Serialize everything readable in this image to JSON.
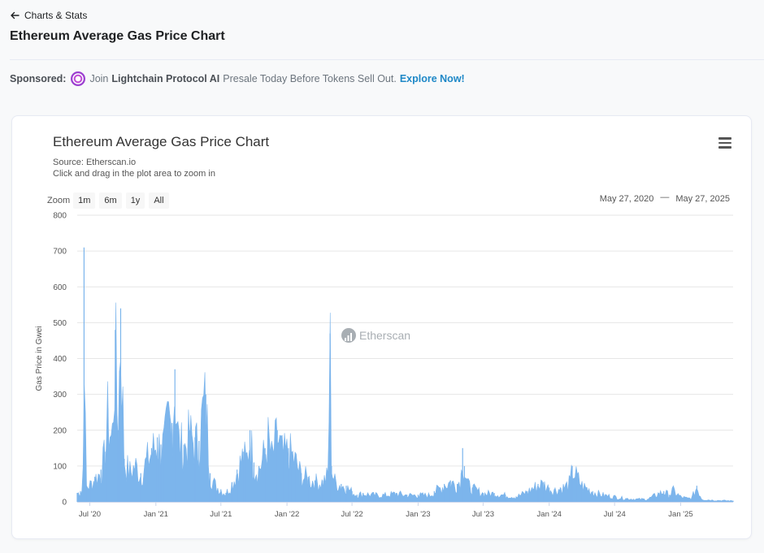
{
  "header": {
    "back_label": "Charts & Stats",
    "page_title": "Ethereum Average Gas Price Chart"
  },
  "sponsored": {
    "label": "Sponsored:",
    "text_before": "Join",
    "brand": "Lightchain Protocol AI",
    "text_after": "Presale Today Before Tokens Sell Out.",
    "cta": "Explore Now!"
  },
  "chart_panel": {
    "zoom_label": "Zoom",
    "zoom_buttons": [
      "1m",
      "6m",
      "1y",
      "All"
    ],
    "range_start": "May 27, 2020",
    "range_sep": "—",
    "range_end": "May 27, 2025",
    "watermark": "Etherscan",
    "menu_icon": "hamburger-menu-icon"
  },
  "colors": {
    "bar_fill": "#7cb5ec",
    "grid": "#e6e6e6",
    "accent_link": "#1e88c7"
  },
  "chart_data": {
    "type": "area",
    "title": "Ethereum Average Gas Price Chart",
    "subtitle": "Source: Etherscan.io",
    "subtitle2": "Click and drag in the plot area to zoom in",
    "xlabel": "",
    "ylabel": "Gas Price in Gwei",
    "ylim": [
      0,
      800
    ],
    "y_ticks": [
      0,
      100,
      200,
      300,
      400,
      500,
      600,
      700,
      800
    ],
    "x_range": [
      "2020-05-27",
      "2025-05-27"
    ],
    "x_tick_labels": [
      "Jul '20",
      "Jan '21",
      "Jul '21",
      "Jan '22",
      "Jul '22",
      "Jan '23",
      "Jul '23",
      "Jan '24",
      "Jul '24",
      "Jan '25"
    ],
    "x_tick_dates": [
      "2020-07-01",
      "2021-01-01",
      "2021-07-01",
      "2022-01-01",
      "2022-07-01",
      "2023-01-01",
      "2023-07-01",
      "2024-01-01",
      "2024-07-01",
      "2025-01-01"
    ],
    "grid": true,
    "legend": "none",
    "series": [
      {
        "x": [
          "2020-05-27",
          "2020-06-05",
          "2020-06-12",
          "2020-06-15",
          "2020-06-20",
          "2020-07-01",
          "2020-07-15",
          "2020-08-01",
          "2020-08-12",
          "2020-08-20",
          "2020-09-01",
          "2020-09-10",
          "2020-09-17",
          "2020-09-25",
          "2020-10-05",
          "2020-10-20",
          "2020-11-05",
          "2020-11-20",
          "2020-12-05",
          "2020-12-20",
          "2021-01-05",
          "2021-01-15",
          "2021-01-25",
          "2021-02-05",
          "2021-02-15",
          "2021-02-23",
          "2021-03-05",
          "2021-03-20",
          "2021-04-05",
          "2021-04-20",
          "2021-05-01",
          "2021-05-12",
          "2021-05-20",
          "2021-06-01",
          "2021-06-15",
          "2021-07-01",
          "2021-07-15",
          "2021-08-01",
          "2021-08-15",
          "2021-09-01",
          "2021-09-10",
          "2021-09-20",
          "2021-10-01",
          "2021-10-15",
          "2021-11-01",
          "2021-11-10",
          "2021-11-20",
          "2021-12-05",
          "2021-12-20",
          "2022-01-05",
          "2022-01-15",
          "2022-01-25",
          "2022-02-10",
          "2022-03-01",
          "2022-03-20",
          "2022-04-10",
          "2022-04-25",
          "2022-05-01",
          "2022-05-05",
          "2022-05-15",
          "2022-06-01",
          "2022-06-15",
          "2022-07-01",
          "2022-07-15",
          "2022-08-01",
          "2022-09-01",
          "2022-10-01",
          "2022-11-01",
          "2022-12-01",
          "2023-01-01",
          "2023-02-01",
          "2023-02-15",
          "2023-03-01",
          "2023-03-15",
          "2023-04-01",
          "2023-04-20",
          "2023-05-01",
          "2023-05-05",
          "2023-05-10",
          "2023-05-20",
          "2023-06-01",
          "2023-07-01",
          "2023-08-01",
          "2023-09-01",
          "2023-10-01",
          "2023-11-01",
          "2023-11-15",
          "2023-12-01",
          "2023-12-15",
          "2024-01-01",
          "2024-01-15",
          "2024-02-01",
          "2024-02-15",
          "2024-03-01",
          "2024-03-05",
          "2024-03-15",
          "2024-04-01",
          "2024-04-15",
          "2024-05-01",
          "2024-06-01",
          "2024-07-01",
          "2024-08-01",
          "2024-08-05",
          "2024-09-01",
          "2024-10-01",
          "2024-11-01",
          "2024-11-15",
          "2024-12-01",
          "2024-12-10",
          "2025-01-01",
          "2025-01-20",
          "2025-02-01",
          "2025-02-15",
          "2025-03-01",
          "2025-04-01",
          "2025-05-01",
          "2025-05-27"
        ],
        "values": [
          25,
          30,
          40,
          710,
          45,
          50,
          70,
          90,
          140,
          260,
          180,
          480,
          200,
          540,
          120,
          90,
          110,
          80,
          120,
          150,
          180,
          160,
          170,
          250,
          220,
          370,
          180,
          160,
          200,
          180,
          170,
          280,
          300,
          80,
          50,
          35,
          25,
          55,
          90,
          140,
          120,
          200,
          110,
          100,
          150,
          190,
          130,
          200,
          140,
          150,
          140,
          120,
          80,
          70,
          60,
          60,
          80,
          470,
          100,
          60,
          50,
          45,
          30,
          20,
          25,
          20,
          20,
          25,
          20,
          20,
          20,
          30,
          40,
          50,
          60,
          50,
          80,
          150,
          100,
          50,
          40,
          25,
          25,
          20,
          15,
          30,
          40,
          50,
          55,
          40,
          35,
          40,
          45,
          60,
          100,
          80,
          50,
          40,
          30,
          20,
          15,
          10,
          10,
          8,
          8,
          25,
          30,
          20,
          35,
          15,
          10,
          12,
          45,
          8,
          5,
          4,
          3
        ]
      }
    ]
  }
}
